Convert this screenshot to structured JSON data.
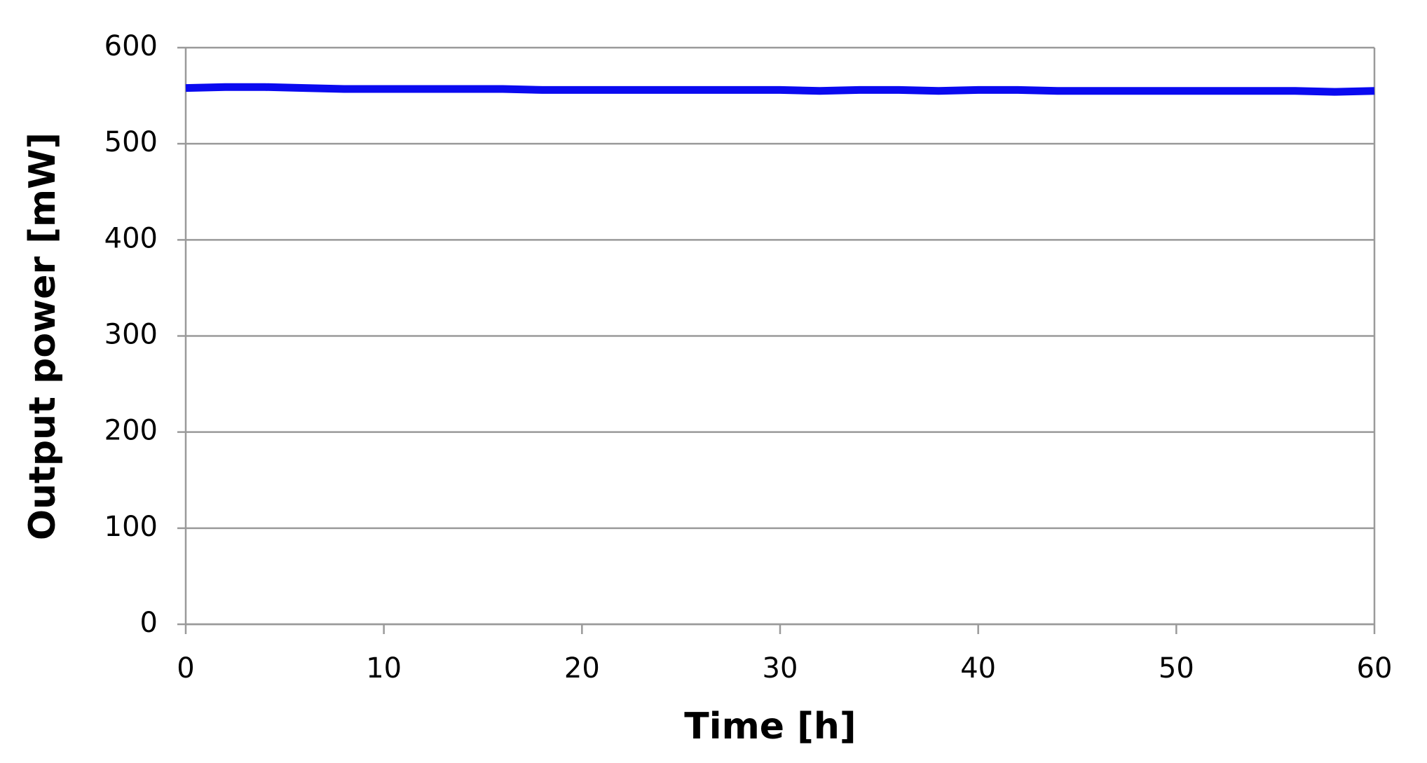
{
  "chart_data": {
    "type": "line",
    "x_label": "Time [h]",
    "y_label": "Output power [mW]",
    "x": [
      0,
      2,
      4,
      6,
      8,
      10,
      12,
      14,
      16,
      18,
      20,
      22,
      24,
      26,
      28,
      30,
      32,
      34,
      36,
      38,
      40,
      42,
      44,
      46,
      48,
      50,
      52,
      54,
      56,
      58,
      60
    ],
    "values": [
      558,
      559,
      559,
      558,
      557,
      557,
      557,
      557,
      557,
      556,
      556,
      556,
      556,
      556,
      556,
      556,
      555,
      556,
      556,
      555,
      556,
      556,
      555,
      555,
      555,
      555,
      555,
      555,
      555,
      554,
      555
    ],
    "color": "#0a0af0",
    "xlim": [
      0,
      60
    ],
    "xticks": [
      0,
      10,
      20,
      30,
      40,
      50,
      60
    ],
    "ylim": [
      0,
      600
    ],
    "yticks": [
      0,
      100,
      200,
      300,
      400,
      500,
      600
    ],
    "grid": true
  }
}
